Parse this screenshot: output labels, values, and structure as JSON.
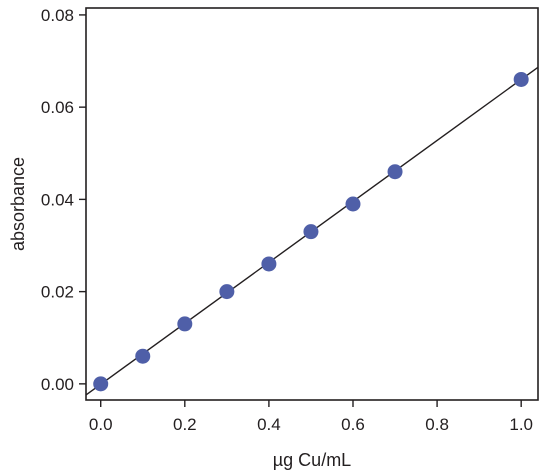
{
  "chart_data": {
    "type": "scatter",
    "xlabel": "µg Cu/mL",
    "ylabel": "absorbance",
    "xlim": [
      -0.035,
      1.04
    ],
    "ylim": [
      -0.0035,
      0.0815
    ],
    "x_ticks": [
      0.0,
      0.2,
      0.4,
      0.6,
      0.8,
      1.0
    ],
    "x_tick_labels": [
      "0.0",
      "0.2",
      "0.4",
      "0.6",
      "0.8",
      "1.0"
    ],
    "y_ticks": [
      0.0,
      0.02,
      0.04,
      0.06,
      0.08
    ],
    "y_tick_labels": [
      "0.00",
      "0.02",
      "0.04",
      "0.06",
      "0.08"
    ],
    "grid": false,
    "series": [
      {
        "x": [
          0.0,
          0.1,
          0.2,
          0.3,
          0.4,
          0.5,
          0.6,
          0.7,
          1.0
        ],
        "y": [
          0.0,
          0.006,
          0.013,
          0.02,
          0.026,
          0.033,
          0.039,
          0.046,
          0.066
        ],
        "color": "#4f5fa8"
      }
    ],
    "fit_line": {
      "slope": 0.0661,
      "intercept": -0.0001,
      "color": "#231f20"
    }
  }
}
